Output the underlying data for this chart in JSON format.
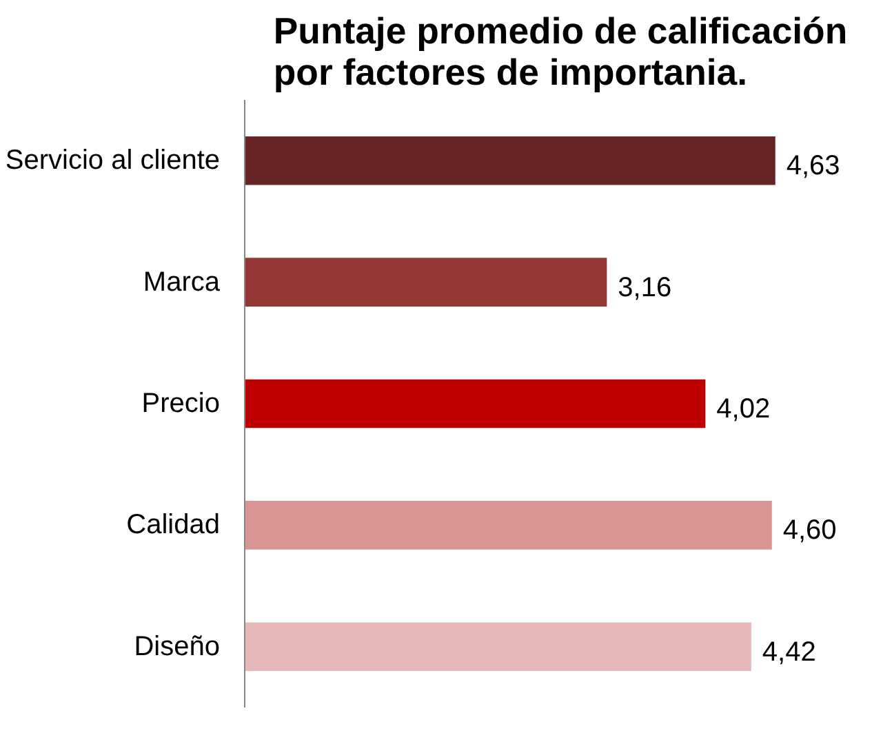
{
  "chart_data": {
    "type": "bar",
    "orientation": "horizontal",
    "title": "Puntaje promedio de calificación por factores de importania.",
    "categories": [
      "Servicio al cliente",
      "Marca",
      "Precio",
      "Calidad",
      "Diseño"
    ],
    "values": [
      4.63,
      3.16,
      4.02,
      4.6,
      4.42
    ],
    "colors": [
      "#672424",
      "#953735",
      "#c00000",
      "#d99594",
      "#e6b9b8"
    ],
    "value_labels": [
      "4,63",
      "3,16",
      "4,02",
      "4,60",
      "4,42"
    ],
    "grid": false
  }
}
